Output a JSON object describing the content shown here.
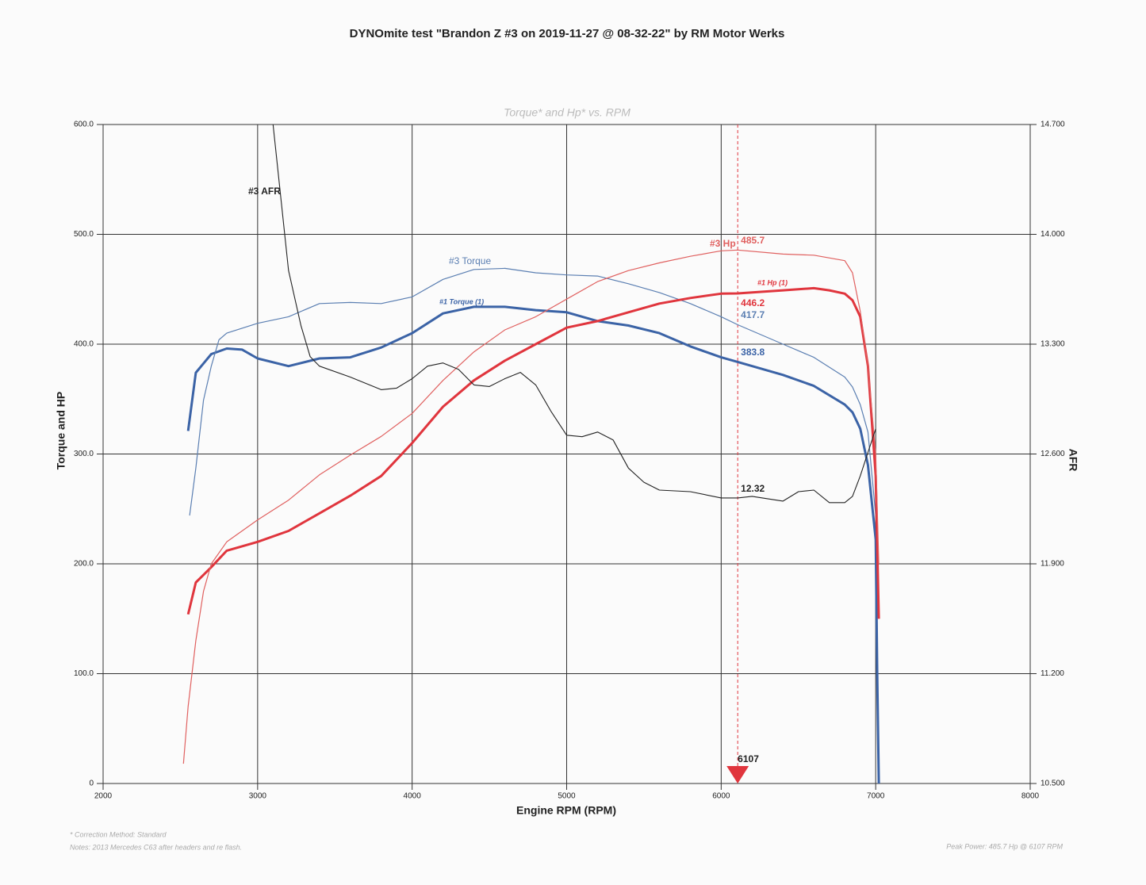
{
  "chart_data": {
    "type": "line",
    "title": "DYNOmite test \"Brandon Z #3 on 2019-11-27 @ 08-32-22\" by RM Motor Werks",
    "subtitle": "Torque* and Hp* vs. RPM",
    "x_label": "Engine RPM (RPM)",
    "y_label": "Torque and HP",
    "y2_label": "AFR",
    "xlim": [
      2000,
      8000
    ],
    "xticks": [
      2000,
      3000,
      4000,
      5000,
      6000,
      7000,
      8000
    ],
    "ylim": [
      0,
      600
    ],
    "yticks": [
      0,
      {
        "value": 100,
        "label": "100.0"
      },
      {
        "value": 200,
        "label": "200.0"
      },
      {
        "value": 300,
        "label": "300.0"
      },
      {
        "value": 400,
        "label": "400.0"
      },
      {
        "value": 500,
        "label": "500.0"
      },
      {
        "value": 600,
        "label": "600.0"
      }
    ],
    "y2lim": [
      10.5,
      14.7
    ],
    "y2ticks": [
      {
        "value": 10.5,
        "label": "10.500"
      },
      {
        "value": 11.2,
        "label": "11.200"
      },
      {
        "value": 11.9,
        "label": "11.900"
      },
      {
        "value": 12.6,
        "label": "12.600"
      },
      {
        "value": 13.3,
        "label": "13.300"
      },
      {
        "value": 14.0,
        "label": "14.000"
      },
      {
        "value": 14.7,
        "label": "14.700"
      }
    ],
    "grid": true,
    "cursor": 6107,
    "series": [
      {
        "name": "#1 Torque (1)",
        "color": "#3b63a6",
        "x": [
          2550,
          2600,
          2700,
          2800,
          2900,
          3000,
          3200,
          3400,
          3600,
          3800,
          4000,
          4200,
          4400,
          4600,
          4800,
          5000,
          5200,
          5400,
          5600,
          5800,
          6000,
          6107,
          6400,
          6600,
          6800,
          6850,
          6900,
          6950,
          7000,
          7010,
          7020
        ],
        "values": [
          321,
          374,
          391,
          396,
          395,
          387,
          380,
          387,
          388,
          397,
          410,
          428,
          434,
          434,
          431,
          429,
          421,
          417,
          410,
          398,
          388,
          383.8,
          372,
          362,
          345,
          338,
          323,
          290,
          222,
          100,
          0
        ]
      },
      {
        "name": "#3 Torque",
        "color": "#5b7fb2",
        "x": [
          2560,
          2600,
          2650,
          2700,
          2750,
          2800,
          3000,
          3200,
          3400,
          3600,
          3800,
          4000,
          4200,
          4400,
          4600,
          4800,
          5000,
          5200,
          5400,
          5600,
          5800,
          6000,
          6107,
          6400,
          6600,
          6800,
          6850,
          6900,
          6950,
          7000
        ],
        "values": [
          244,
          287,
          349,
          380,
          404,
          410,
          419,
          425,
          437,
          438,
          437,
          443,
          459,
          468,
          469,
          465,
          463,
          462,
          455,
          447,
          437,
          425,
          417.7,
          400,
          388,
          370,
          361,
          345,
          320,
          244
        ]
      },
      {
        "name": "#1 Hp (1)",
        "color": "#e0353d",
        "x": [
          2550,
          2600,
          2700,
          2800,
          3000,
          3200,
          3400,
          3600,
          3800,
          4000,
          4200,
          4400,
          4600,
          4800,
          5000,
          5200,
          5400,
          5600,
          5800,
          6000,
          6107,
          6400,
          6600,
          6700,
          6800,
          6850,
          6900,
          6950,
          7000,
          7020
        ],
        "values": [
          154,
          183,
          197,
          212,
          220,
          230,
          246,
          262,
          280,
          310,
          343,
          367,
          385,
          400,
          415,
          421,
          429,
          437,
          442,
          446,
          446.2,
          449,
          451,
          449,
          446,
          440,
          425,
          380,
          280,
          150
        ]
      },
      {
        "name": "#3 Hp",
        "color": "#e0605f",
        "x": [
          2520,
          2550,
          2600,
          2650,
          2700,
          2800,
          3000,
          3200,
          3400,
          3600,
          3800,
          4000,
          4200,
          4400,
          4600,
          4800,
          5000,
          5200,
          5400,
          5600,
          5800,
          6000,
          6107,
          6400,
          6600,
          6800,
          6850,
          6900,
          6950,
          7000,
          7020
        ],
        "values": [
          18,
          70,
          130,
          175,
          200,
          220,
          240,
          258,
          281,
          299,
          316,
          337,
          367,
          393,
          413,
          425,
          441,
          457,
          467,
          474,
          480,
          485,
          485.7,
          482,
          481,
          476,
          465,
          430,
          380,
          300,
          200
        ]
      },
      {
        "name": "#3 AFR",
        "color": "#222222",
        "axis": "y2",
        "x": [
          3100,
          3200,
          3280,
          3340,
          3400,
          3600,
          3800,
          3900,
          4000,
          4100,
          4200,
          4300,
          4400,
          4500,
          4600,
          4700,
          4800,
          4900,
          5000,
          5100,
          5200,
          5300,
          5400,
          5500,
          5600,
          5800,
          6000,
          6107,
          6200,
          6400,
          6500,
          6600,
          6700,
          6800,
          6850,
          6900,
          6950,
          7000
        ],
        "values": [
          14.7,
          13.77,
          13.42,
          13.22,
          13.16,
          13.09,
          13.01,
          13.02,
          13.08,
          13.16,
          13.18,
          13.14,
          13.04,
          13.03,
          13.08,
          13.12,
          13.04,
          12.87,
          12.72,
          12.71,
          12.74,
          12.69,
          12.51,
          12.42,
          12.37,
          12.36,
          12.32,
          12.32,
          12.33,
          12.3,
          12.36,
          12.37,
          12.29,
          12.29,
          12.33,
          12.46,
          12.61,
          12.76
        ]
      }
    ],
    "notes": [
      "* Correction Method: Standard",
      "Notes: 2013 Mercedes C63 after headers and re flash."
    ],
    "peak_note": "Peak Power: 485.7 Hp @ 6107 RPM"
  }
}
